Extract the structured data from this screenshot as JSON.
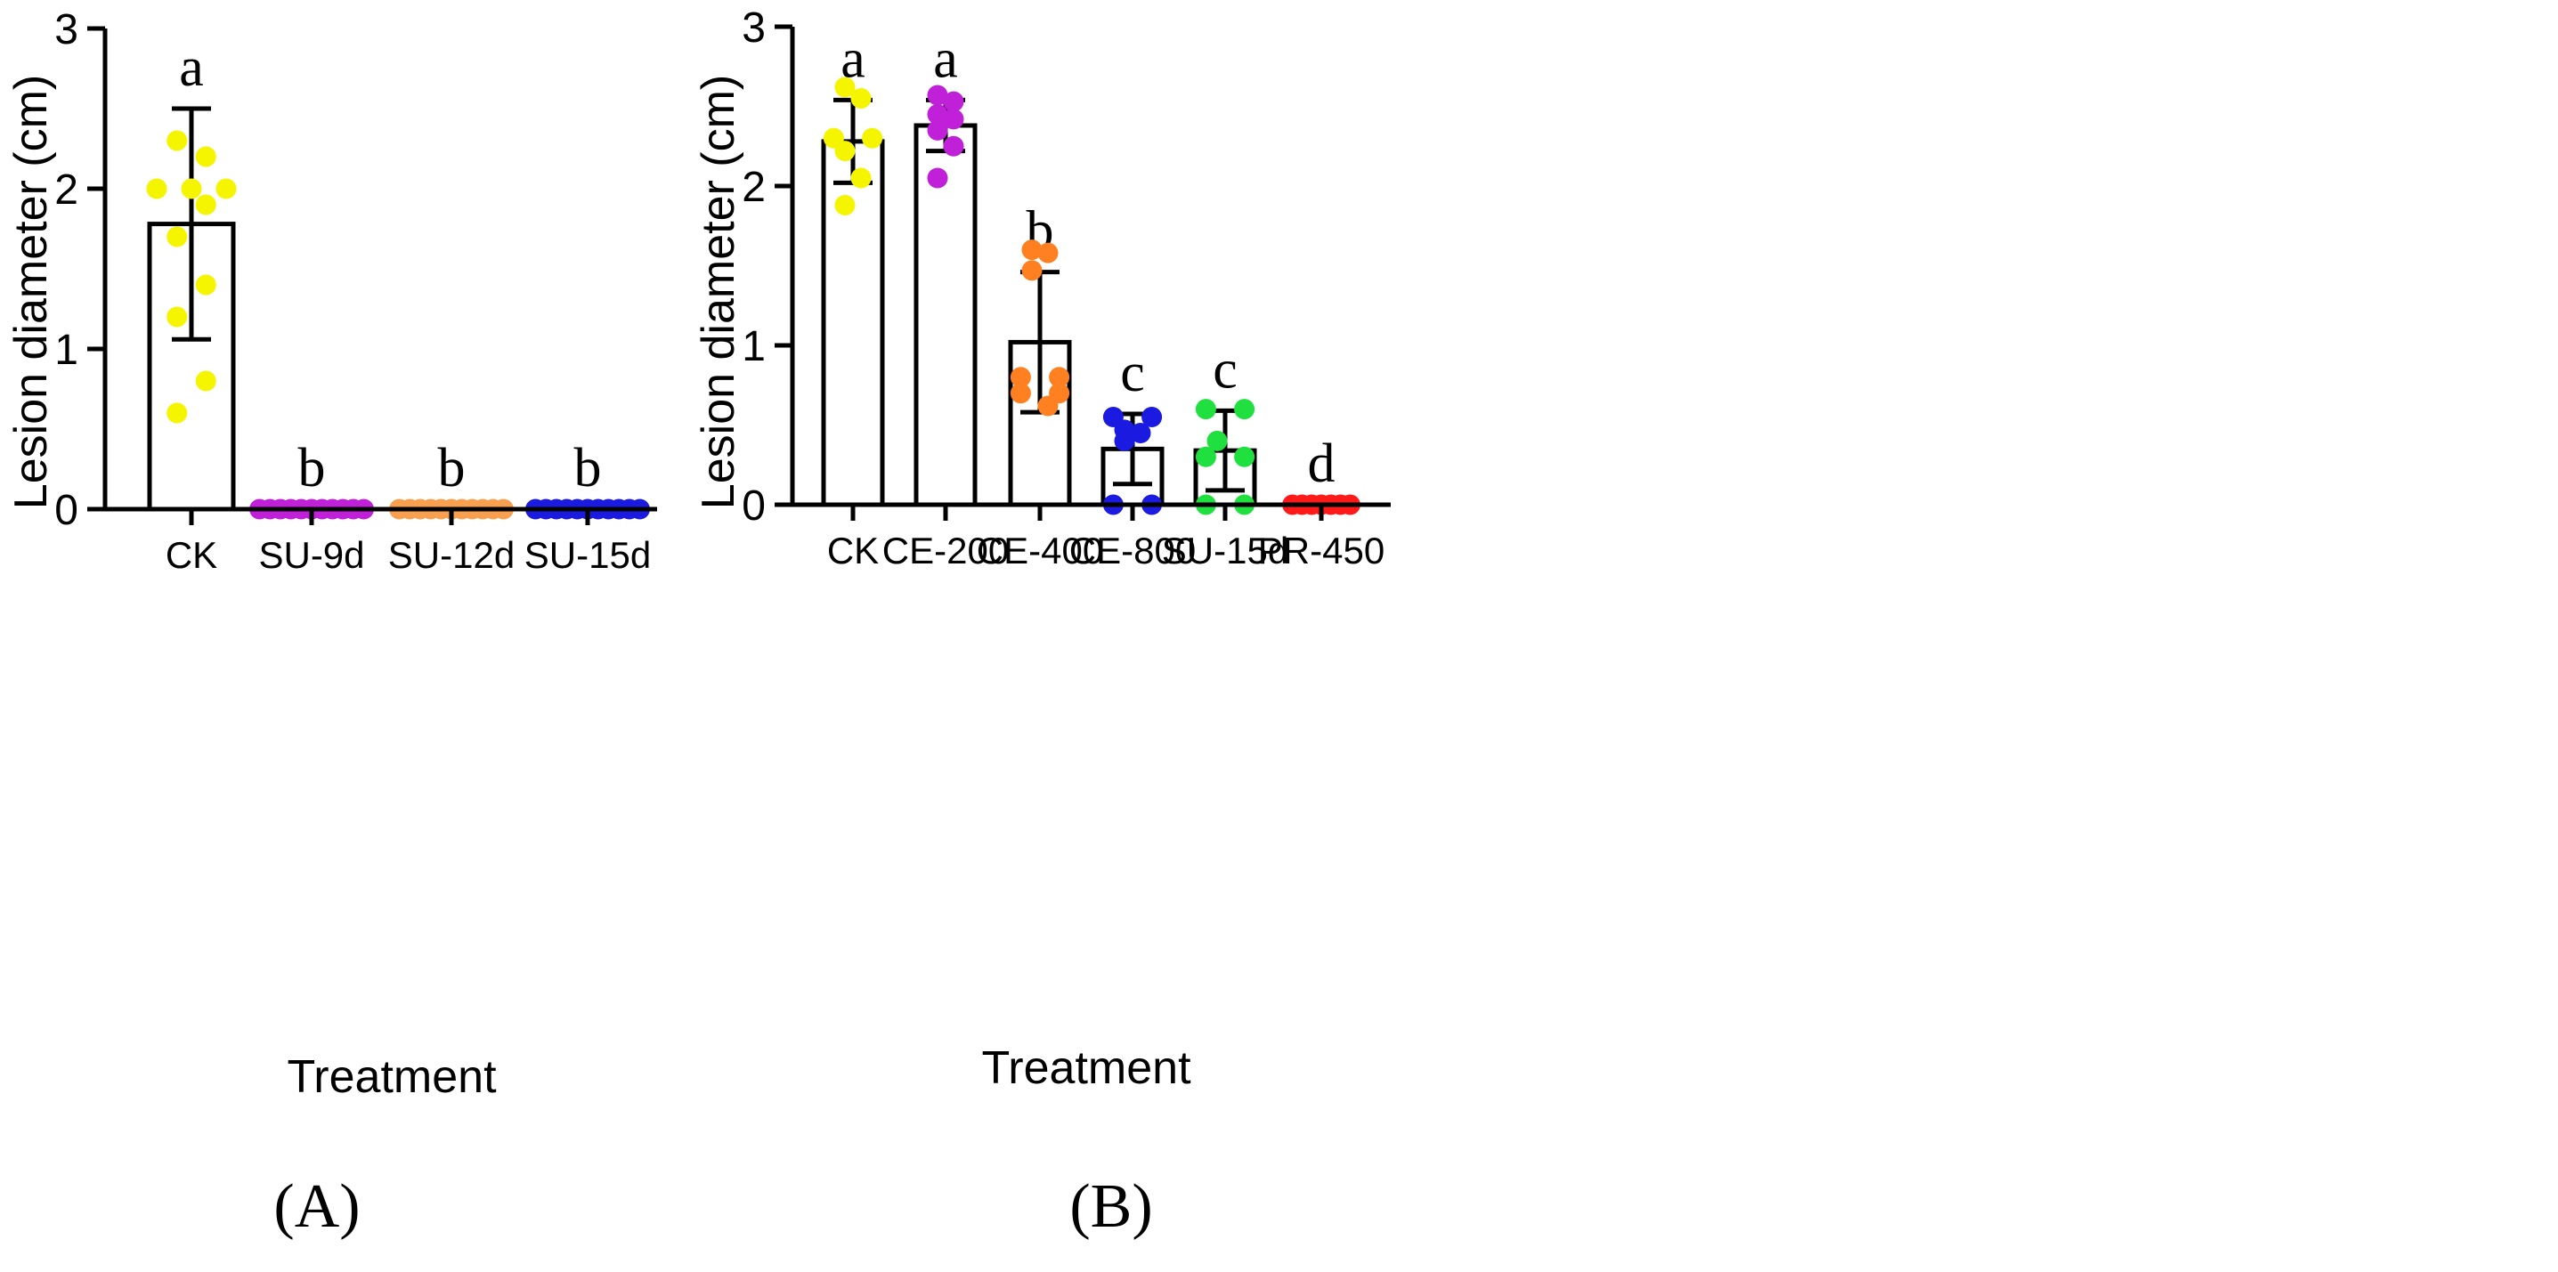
{
  "figure_panels": [
    {
      "label": "(A)"
    },
    {
      "label": "(B)"
    }
  ],
  "chart_data": [
    {
      "type": "bar",
      "panel": "(A)",
      "xlabel": "Treatment",
      "ylabel": "Lesion diameter (cm)",
      "ylim": [
        0,
        3
      ],
      "yticks": [
        "0",
        "1",
        "2",
        "3"
      ],
      "categories": [
        "CK",
        "SU-9d",
        "SU-12d",
        "SU-15d"
      ],
      "values": [
        1.78,
        0,
        0,
        0
      ],
      "error": [
        0.72,
        0,
        0,
        0
      ],
      "letters": [
        "a",
        "b",
        "b",
        "b"
      ],
      "colors": [
        "#f5f500",
        "#c020d8",
        "#f8a050",
        "#1a1ae0"
      ],
      "points": [
        [
          2.3,
          2.2,
          2.0,
          2.0,
          2.0,
          1.9,
          1.7,
          1.4,
          1.2,
          0.8,
          0.6
        ],
        [
          0,
          0,
          0,
          0,
          0,
          0,
          0,
          0,
          0,
          0,
          0
        ],
        [
          0,
          0,
          0,
          0,
          0,
          0,
          0,
          0,
          0,
          0,
          0
        ],
        [
          0,
          0,
          0,
          0,
          0,
          0,
          0,
          0,
          0,
          0,
          0
        ]
      ]
    },
    {
      "type": "bar",
      "panel": "(B)",
      "xlabel": "Treatment",
      "ylabel": "Lesion diameter (cm)",
      "ylim": [
        0,
        3
      ],
      "yticks": [
        "0",
        "1",
        "2",
        "3"
      ],
      "categories": [
        "CK",
        "CE-200",
        "CE-400",
        "CE-800",
        "SU-15d",
        "PR-450"
      ],
      "values": [
        2.28,
        2.38,
        1.02,
        0.35,
        0.34,
        0
      ],
      "error": [
        0.26,
        0.16,
        0.44,
        0.22,
        0.25,
        0
      ],
      "letters": [
        "a",
        "a",
        "b",
        "c",
        "c",
        "d"
      ],
      "colors": [
        "#f5f500",
        "#c020d8",
        "#ff8020",
        "#1a1ae0",
        "#20e040",
        "#ff1a1a"
      ],
      "points": [
        [
          2.62,
          2.55,
          2.3,
          2.3,
          2.22,
          2.05,
          1.88
        ],
        [
          2.57,
          2.53,
          2.45,
          2.42,
          2.35,
          2.25,
          2.05
        ],
        [
          1.6,
          1.58,
          1.47,
          0.8,
          0.8,
          0.7,
          0.7,
          0.62
        ],
        [
          0.55,
          0.55,
          0.47,
          0.45,
          0.4,
          0,
          0
        ],
        [
          0.6,
          0.6,
          0.4,
          0.3,
          0.3,
          0,
          0
        ],
        [
          0,
          0,
          0,
          0,
          0,
          0,
          0
        ]
      ]
    }
  ]
}
